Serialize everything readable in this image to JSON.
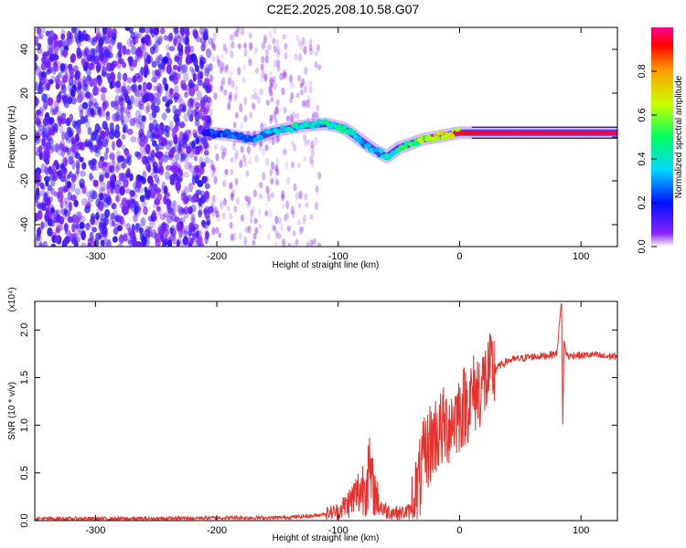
{
  "title": "C2E2.2025.208.10.58.G07",
  "chart_data": [
    {
      "type": "heatmap",
      "xlabel": "Height of straight line (km)",
      "ylabel": "Frequency (Hz)",
      "xlim": [
        -350,
        130
      ],
      "ylim": [
        -50,
        50
      ],
      "xticks": [
        -300,
        -200,
        -100,
        0,
        100
      ],
      "yticks": [
        -40,
        -20,
        0,
        20,
        40
      ],
      "colorbar": {
        "label": "Normalized spectral amplitude",
        "range": [
          0,
          1
        ],
        "ticks": [
          "0.0",
          "0.2",
          "0.4",
          "0.6",
          "0.8"
        ],
        "colors": [
          "#ffffff",
          "#6a00ff",
          "#0010ff",
          "#00e0ff",
          "#00ff60",
          "#c8ff00",
          "#ffb000",
          "#ff0000",
          "#ff0080"
        ]
      },
      "ridge": {
        "x": [
          -210,
          -190,
          -170,
          -150,
          -130,
          -110,
          -95,
          -80,
          -70,
          -60,
          -50,
          -40,
          -30,
          -20,
          -10,
          0,
          20,
          60,
          100,
          130
        ],
        "freq": [
          2,
          1,
          -1,
          3,
          5,
          6,
          4,
          -2,
          -6,
          -9,
          -5,
          -3,
          -1,
          0,
          1,
          2,
          2,
          2,
          2,
          2
        ],
        "amplitude": [
          0.25,
          0.3,
          0.3,
          0.4,
          0.45,
          0.45,
          0.45,
          0.35,
          0.35,
          0.4,
          0.5,
          0.6,
          0.65,
          0.75,
          0.85,
          0.9,
          0.95,
          0.95,
          0.95,
          0.95
        ]
      }
    },
    {
      "type": "line",
      "xlabel": "Height of straight line (km)",
      "ylabel": "SNR (10 * v/v)",
      "exponent_label": "(x10⁴)",
      "xlim": [
        -350,
        130
      ],
      "ylim": [
        0,
        2.3
      ],
      "xticks": [
        -300,
        -200,
        -100,
        0,
        100
      ],
      "yticks": [
        "0.0",
        "0.5",
        "1.0",
        "1.5",
        "2.0"
      ],
      "color": "#e8302c",
      "series": [
        {
          "x": [
            -350,
            -300,
            -250,
            -200,
            -150,
            -120,
            -100,
            -90,
            -80,
            -75,
            -70,
            -65,
            -60,
            -50,
            -40,
            -35,
            -30,
            -25,
            -20,
            -10,
            0,
            10,
            20,
            30,
            40,
            50,
            60,
            70,
            80,
            84,
            85,
            86,
            87,
            88,
            90,
            95,
            100,
            110,
            120,
            130
          ],
          "y": [
            0.02,
            0.02,
            0.02,
            0.03,
            0.03,
            0.05,
            0.1,
            0.2,
            0.35,
            0.5,
            0.3,
            0.15,
            0.1,
            0.08,
            0.1,
            0.3,
            0.6,
            0.8,
            0.9,
            1.0,
            1.15,
            1.3,
            1.45,
            1.6,
            1.68,
            1.7,
            1.72,
            1.73,
            1.75,
            2.3,
            0.95,
            1.9,
            1.8,
            1.75,
            1.72,
            1.74,
            1.73,
            1.74,
            1.72,
            1.73
          ]
        }
      ]
    }
  ]
}
